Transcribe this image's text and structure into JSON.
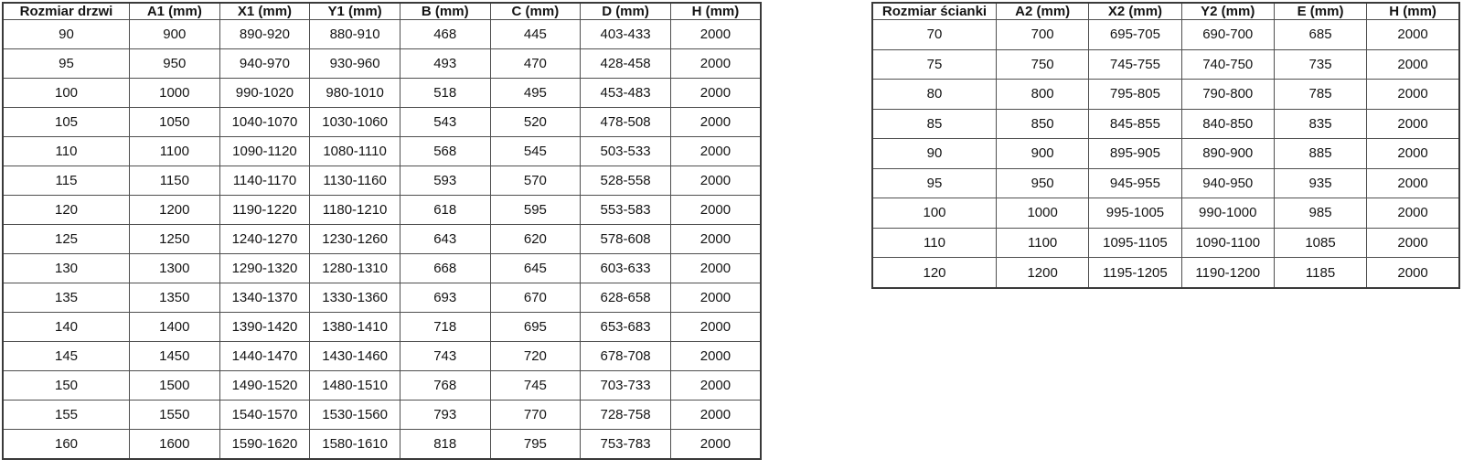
{
  "colors": {
    "background": "#ffffff",
    "grid_border": "#4f4f4f",
    "outer_border": "#3a3a3a",
    "text": "#141414"
  },
  "tables": [
    {
      "id": "door-sizes",
      "headers": [
        "Rozmiar drzwi",
        "A1 (mm)",
        "X1 (mm)",
        "Y1 (mm)",
        "B (mm)",
        "C (mm)",
        "D (mm)",
        "H (mm)"
      ],
      "rows": [
        [
          "90",
          "900",
          "890-920",
          "880-910",
          "468",
          "445",
          "403-433",
          "2000"
        ],
        [
          "95",
          "950",
          "940-970",
          "930-960",
          "493",
          "470",
          "428-458",
          "2000"
        ],
        [
          "100",
          "1000",
          "990-1020",
          "980-1010",
          "518",
          "495",
          "453-483",
          "2000"
        ],
        [
          "105",
          "1050",
          "1040-1070",
          "1030-1060",
          "543",
          "520",
          "478-508",
          "2000"
        ],
        [
          "110",
          "1100",
          "1090-1120",
          "1080-1110",
          "568",
          "545",
          "503-533",
          "2000"
        ],
        [
          "115",
          "1150",
          "1140-1170",
          "1130-1160",
          "593",
          "570",
          "528-558",
          "2000"
        ],
        [
          "120",
          "1200",
          "1190-1220",
          "1180-1210",
          "618",
          "595",
          "553-583",
          "2000"
        ],
        [
          "125",
          "1250",
          "1240-1270",
          "1230-1260",
          "643",
          "620",
          "578-608",
          "2000"
        ],
        [
          "130",
          "1300",
          "1290-1320",
          "1280-1310",
          "668",
          "645",
          "603-633",
          "2000"
        ],
        [
          "135",
          "1350",
          "1340-1370",
          "1330-1360",
          "693",
          "670",
          "628-658",
          "2000"
        ],
        [
          "140",
          "1400",
          "1390-1420",
          "1380-1410",
          "718",
          "695",
          "653-683",
          "2000"
        ],
        [
          "145",
          "1450",
          "1440-1470",
          "1430-1460",
          "743",
          "720",
          "678-708",
          "2000"
        ],
        [
          "150",
          "1500",
          "1490-1520",
          "1480-1510",
          "768",
          "745",
          "703-733",
          "2000"
        ],
        [
          "155",
          "1550",
          "1540-1570",
          "1530-1560",
          "793",
          "770",
          "728-758",
          "2000"
        ],
        [
          "160",
          "1600",
          "1590-1620",
          "1580-1610",
          "818",
          "795",
          "753-783",
          "2000"
        ]
      ]
    },
    {
      "id": "wall-sizes",
      "headers": [
        "Rozmiar ścianki",
        "A2 (mm)",
        "X2 (mm)",
        "Y2 (mm)",
        "E (mm)",
        "H (mm)"
      ],
      "rows": [
        [
          "70",
          "700",
          "695-705",
          "690-700",
          "685",
          "2000"
        ],
        [
          "75",
          "750",
          "745-755",
          "740-750",
          "735",
          "2000"
        ],
        [
          "80",
          "800",
          "795-805",
          "790-800",
          "785",
          "2000"
        ],
        [
          "85",
          "850",
          "845-855",
          "840-850",
          "835",
          "2000"
        ],
        [
          "90",
          "900",
          "895-905",
          "890-900",
          "885",
          "2000"
        ],
        [
          "95",
          "950",
          "945-955",
          "940-950",
          "935",
          "2000"
        ],
        [
          "100",
          "1000",
          "995-1005",
          "990-1000",
          "985",
          "2000"
        ],
        [
          "110",
          "1100",
          "1095-1105",
          "1090-1100",
          "1085",
          "2000"
        ],
        [
          "120",
          "1200",
          "1195-1205",
          "1190-1200",
          "1185",
          "2000"
        ]
      ]
    }
  ]
}
